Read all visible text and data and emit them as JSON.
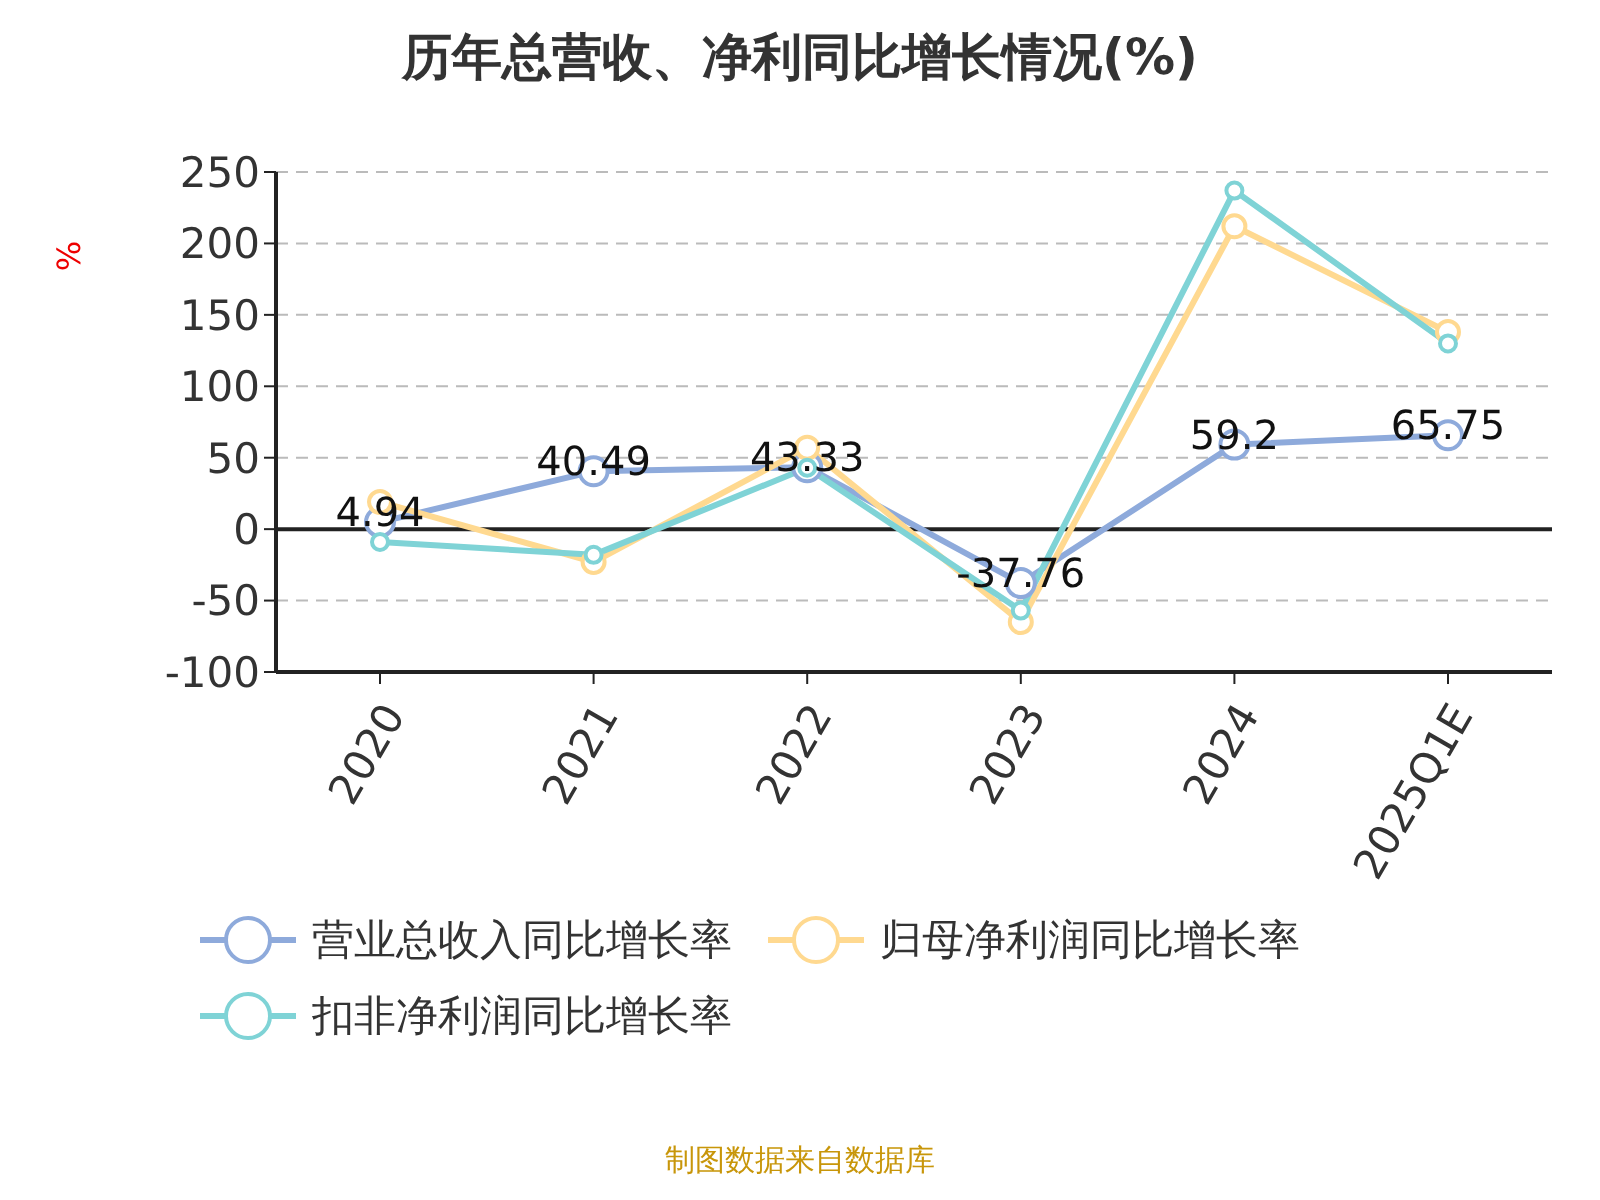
{
  "chart_data": {
    "type": "line",
    "title": "历年总营收、净利同比增长情况(%)",
    "ylabel": "%",
    "categories": [
      "2020",
      "2021",
      "2022",
      "2023",
      "2024",
      "2025Q1E"
    ],
    "series": [
      {
        "name": "营业总收入同比增长率",
        "color": "#8eaadb",
        "values": [
          4.94,
          40.49,
          43.33,
          -37.76,
          59.2,
          65.75
        ],
        "value_labels": [
          "4.94",
          "40.49",
          "43.33",
          "-37.76",
          "59.2",
          "65.75"
        ]
      },
      {
        "name": "归母净利润同比增长率",
        "color": "#ffd990",
        "values": [
          19,
          -23,
          57,
          -65,
          212,
          138
        ]
      },
      {
        "name": "扣非净利润同比增长率",
        "color": "#7fd3d6",
        "values": [
          -9,
          -18,
          43,
          -57,
          237,
          130
        ]
      }
    ],
    "ylim": [
      -100,
      250
    ],
    "yticks": [
      -100,
      -50,
      0,
      50,
      100,
      150,
      200,
      250
    ],
    "grid": "y",
    "legend": "bottom",
    "marker": "circle",
    "line_style": "solid",
    "annotations": [
      "制图数据来自数据库"
    ]
  }
}
